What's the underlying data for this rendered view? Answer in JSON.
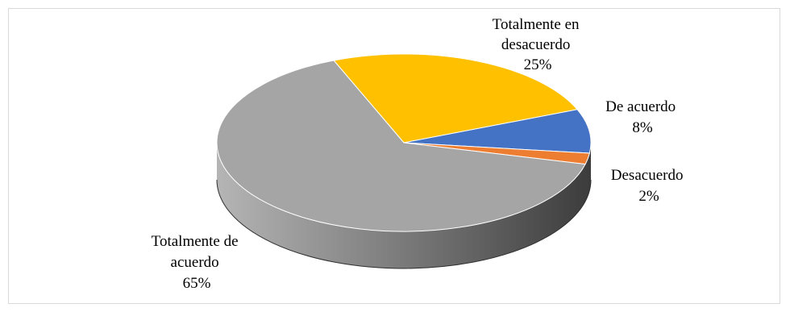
{
  "chart_data": {
    "type": "pie",
    "title": "",
    "categories": [
      "De acuerdo",
      "Desacuerdo",
      "Totalmente de acuerdo",
      "Totalmente en desacuerdo"
    ],
    "values": [
      8,
      2,
      65,
      25
    ],
    "legend": "none",
    "colors": {
      "De acuerdo": "#4472c4",
      "Desacuerdo": "#ed7d31",
      "Totalmente de acuerdo": "#a5a5a5",
      "Totalmente en desacuerdo": "#ffc000"
    },
    "labels": {
      "de_acuerdo": {
        "line1": "De acuerdo",
        "pct": "8%"
      },
      "desacuerdo": {
        "line1": "Desacuerdo",
        "pct": "2%"
      },
      "totalmente_de_acuerdo": {
        "line1": "Totalmente de",
        "line2": "acuerdo",
        "pct": "65%"
      },
      "totalmente_en_desacuerdo": {
        "line1": "Totalmente en",
        "line2": "desacuerdo",
        "pct": "25%"
      }
    }
  }
}
